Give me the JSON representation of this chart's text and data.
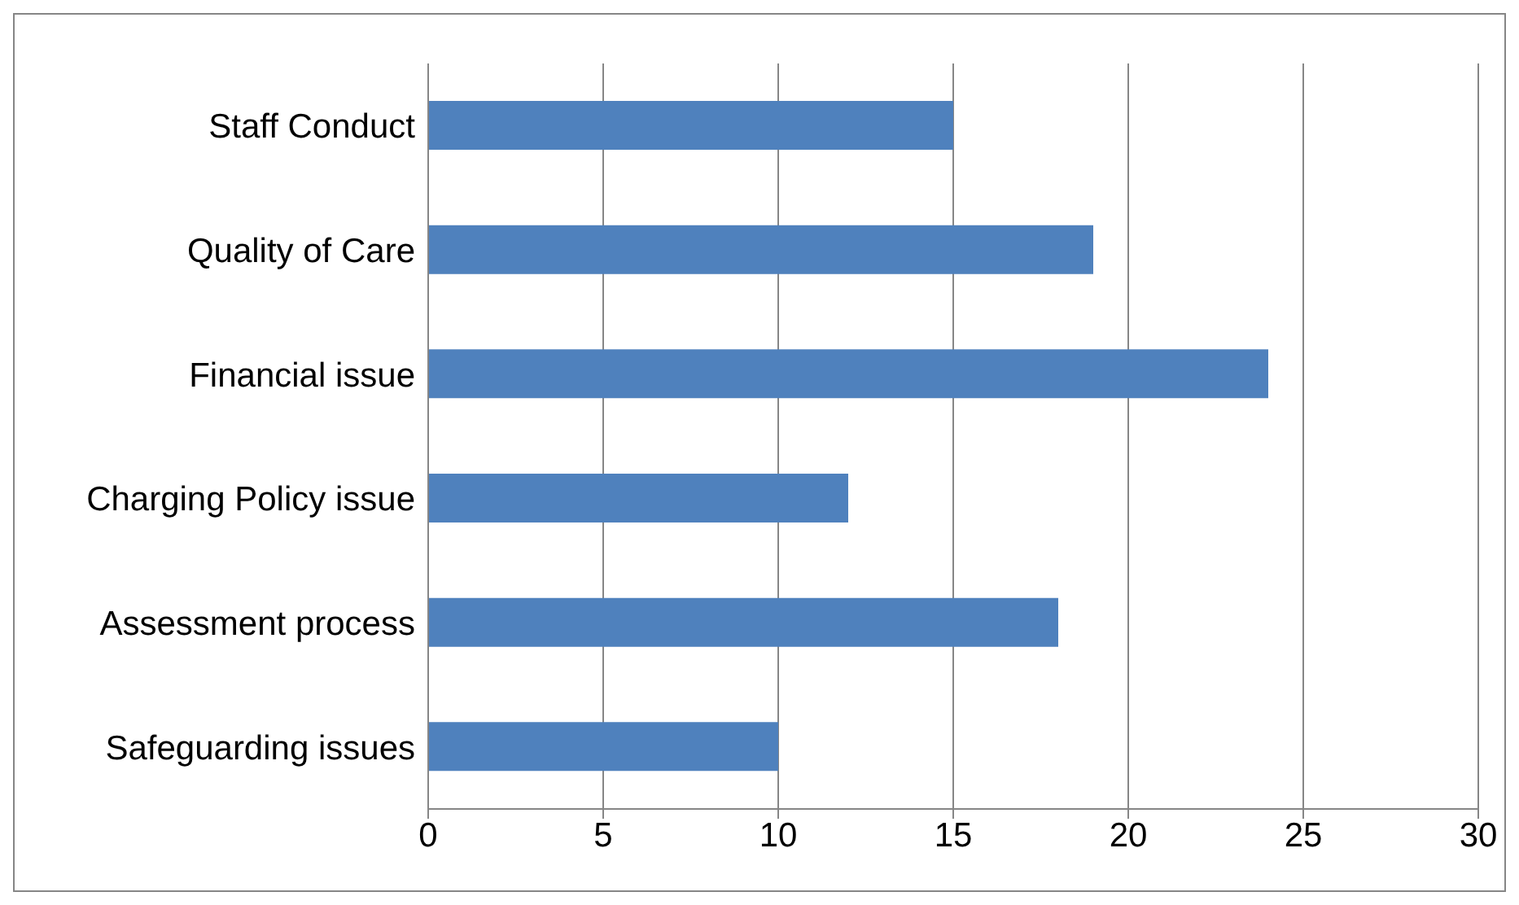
{
  "chart_data": {
    "type": "bar",
    "orientation": "horizontal",
    "categories": [
      "Staff Conduct",
      "Quality of Care",
      "Financial issue",
      "Charging Policy issue",
      "Assessment process",
      "Safeguarding issues"
    ],
    "values": [
      15,
      19,
      24,
      12,
      18,
      10
    ],
    "color": "#4f81bd",
    "xlim": [
      0,
      30
    ],
    "xticks": [
      0,
      5,
      10,
      15,
      20,
      25,
      30
    ],
    "grid": "x",
    "legend": false
  }
}
